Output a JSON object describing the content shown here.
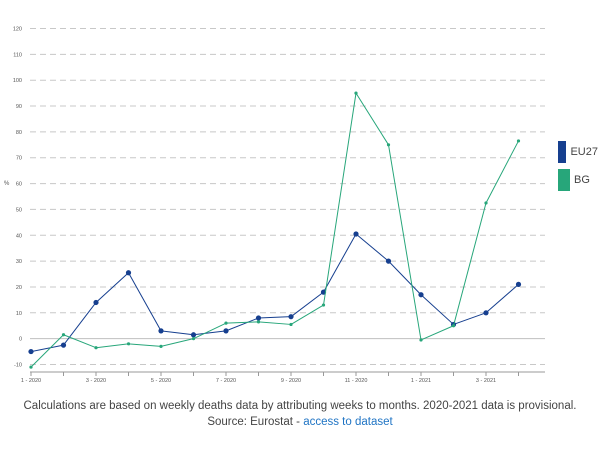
{
  "chart_data": {
    "type": "line",
    "title": "",
    "xlabel": "",
    "ylabel": "%",
    "ylim": [
      -10,
      120
    ],
    "yticks": [
      -10,
      0,
      10,
      20,
      30,
      40,
      50,
      60,
      70,
      80,
      90,
      100,
      110,
      120
    ],
    "categories": [
      "1 - 2020",
      "2 - 2020",
      "3 - 2020",
      "4 - 2020",
      "5 - 2020",
      "6 - 2020",
      "7 - 2020",
      "8 - 2020",
      "9 - 2020",
      "10 - 2020",
      "11 - 2020",
      "12 - 2020",
      "1 - 2021",
      "2 - 2021",
      "3 - 2021",
      "4 - 2021"
    ],
    "tick_labels": [
      "1 - 2020",
      "",
      "3 - 2020",
      "",
      "5 - 2020",
      "",
      "7 - 2020",
      "",
      "9 - 2020",
      "",
      "11 - 2020",
      "",
      "1 - 2021",
      "",
      "3 - 2021",
      ""
    ],
    "series": [
      {
        "name": "EU27",
        "color": "#163f8f",
        "values": [
          -5,
          -2.5,
          14,
          25.5,
          3,
          1.5,
          3,
          8,
          8.5,
          18,
          40.5,
          30,
          17,
          5.5,
          10,
          21
        ]
      },
      {
        "name": "BG",
        "color": "#27a67a",
        "values": [
          -11,
          1.5,
          -3.5,
          -2,
          -3,
          0,
          6,
          6.5,
          5.5,
          13,
          95,
          75,
          -0.5,
          5,
          52.5,
          76.5
        ]
      }
    ],
    "legend": [
      "EU27",
      "BG"
    ]
  },
  "caption": {
    "line1": "Calculations are based on weekly deaths data by attributing weeks to months. 2020-2021 data is provisional.",
    "source_prefix": "Source: Eurostat - ",
    "source_link": "access to dataset"
  },
  "colors": {
    "eu27": "#163f8f",
    "bg": "#27a67a",
    "grid": "#c8c8c8",
    "link": "#1f74c4"
  }
}
